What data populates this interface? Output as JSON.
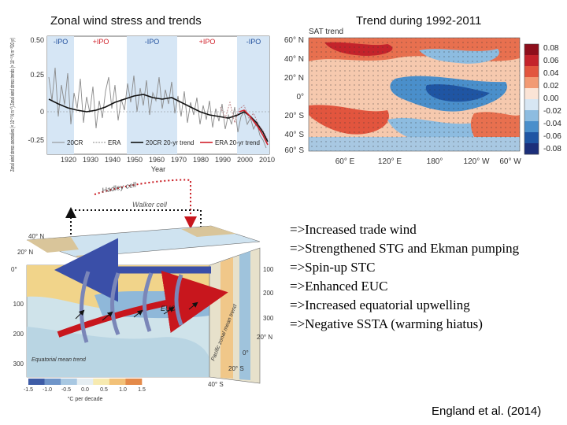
{
  "slide": {
    "left_title": "Zonal wind stress and trends",
    "right_title": "Trend during 1992-2011",
    "bullets": [
      "=>Increased trade wind",
      "=>Strengthened STG and Ekman pumping",
      "=>Spin-up STC",
      "=>Enhanced EUC",
      "=>Increased equatorial upwelling",
      "=>Negative SSTA (warming hiatus)"
    ],
    "citation": "England et al. (2014)"
  },
  "timeseries": {
    "ylabel": "Zonal wind stress anomalies (× 10⁻² N m⁻²) Zonal wind stress trends (× 10⁻² N m⁻²/20 yr)",
    "xlabel": "Year",
    "phase_labels": [
      "-IPO",
      "+IPO",
      "-IPO",
      "+IPO",
      "-IPO"
    ],
    "phase_colors": [
      "#1f4e9c",
      "#d0202a",
      "#1f4e9c",
      "#d0202a",
      "#1f4e9c"
    ],
    "yticks": [
      "0.50",
      "0.25",
      "0",
      "-0.25"
    ],
    "xticks": [
      "1920",
      "1930",
      "1940",
      "1950",
      "1960",
      "1970",
      "1980",
      "1990",
      "2000",
      "2010"
    ],
    "legend": [
      "20CR",
      "ERA",
      "20CR 20-yr trend",
      "ERA 20-yr trend"
    ]
  },
  "map": {
    "title": "SAT trend",
    "lat_labels": [
      "60° N",
      "40° N",
      "20° N",
      "0°",
      "20° S",
      "40° S",
      "60° S"
    ],
    "lon_labels": [
      "60° E",
      "120° E",
      "180°",
      "120° W",
      "60° W"
    ],
    "colorbar_ticks": [
      "0.08",
      "0.06",
      "0.04",
      "0.02",
      "0.00",
      "-0.02",
      "-0.04",
      "-0.06",
      "-0.08"
    ],
    "colorbar_colors": [
      "#8e0f1c",
      "#c4232b",
      "#e2553e",
      "#f29a74",
      "#fbe4d6",
      "#d7e6f3",
      "#8dbce0",
      "#4a8fcb",
      "#1f55a3",
      "#1c2f7a"
    ]
  },
  "schematic": {
    "hadley_label": "Hadley cell",
    "walker_label": "Walker cell",
    "euc_label": "EUC",
    "box_label": "Equatorial mean trend",
    "side_label": "Pacific zonal mean trend",
    "lat_labels": [
      "40° N",
      "20° N",
      "0°"
    ],
    "depth_ticks": [
      "100",
      "200",
      "300"
    ],
    "side_ticks": [
      "100",
      "200",
      "300"
    ],
    "side_lat_labels": [
      "20° N",
      "0°",
      "20° S",
      "40° S"
    ],
    "colorbar_ticks": [
      "-1.5",
      "-1.0",
      "-0.5",
      "0.0",
      "0.5",
      "1.0",
      "1.5"
    ],
    "colorbar_label": "°C per decade",
    "colorbar_colors": [
      "#3e5ca6",
      "#6f95c9",
      "#a8c8e2",
      "#e6eef2",
      "#f7eab0",
      "#f2c178",
      "#e48a4a"
    ]
  }
}
